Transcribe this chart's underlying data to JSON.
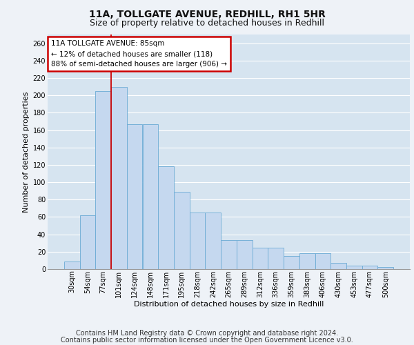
{
  "title1": "11A, TOLLGATE AVENUE, REDHILL, RH1 5HR",
  "title2": "Size of property relative to detached houses in Redhill",
  "xlabel": "Distribution of detached houses by size in Redhill",
  "ylabel": "Number of detached properties",
  "categories": [
    "30sqm",
    "54sqm",
    "77sqm",
    "101sqm",
    "124sqm",
    "148sqm",
    "171sqm",
    "195sqm",
    "218sqm",
    "242sqm",
    "265sqm",
    "289sqm",
    "312sqm",
    "336sqm",
    "359sqm",
    "383sqm",
    "406sqm",
    "430sqm",
    "453sqm",
    "477sqm",
    "500sqm"
  ],
  "values": [
    9,
    62,
    205,
    210,
    167,
    167,
    118,
    89,
    65,
    65,
    33,
    33,
    25,
    25,
    15,
    18,
    18,
    7,
    4,
    4,
    2
  ],
  "bar_color": "#c5d8ef",
  "bar_edge_color": "#6aaad4",
  "background_color": "#d6e4f0",
  "grid_color": "#ffffff",
  "annotation_text": "11A TOLLGATE AVENUE: 85sqm\n← 12% of detached houses are smaller (118)\n88% of semi-detached houses are larger (906) →",
  "annotation_box_color": "#ffffff",
  "annotation_box_edge_color": "#cc0000",
  "red_line_x": 2.5,
  "ylim": [
    0,
    270
  ],
  "yticks": [
    0,
    20,
    40,
    60,
    80,
    100,
    120,
    140,
    160,
    180,
    200,
    220,
    240,
    260
  ],
  "footnote1": "Contains HM Land Registry data © Crown copyright and database right 2024.",
  "footnote2": "Contains public sector information licensed under the Open Government Licence v3.0.",
  "title_fontsize": 10,
  "subtitle_fontsize": 9,
  "axis_fontsize": 8,
  "ylabel_fontsize": 8,
  "tick_fontsize": 7,
  "annotation_fontsize": 7.5,
  "footnote_fontsize": 7
}
